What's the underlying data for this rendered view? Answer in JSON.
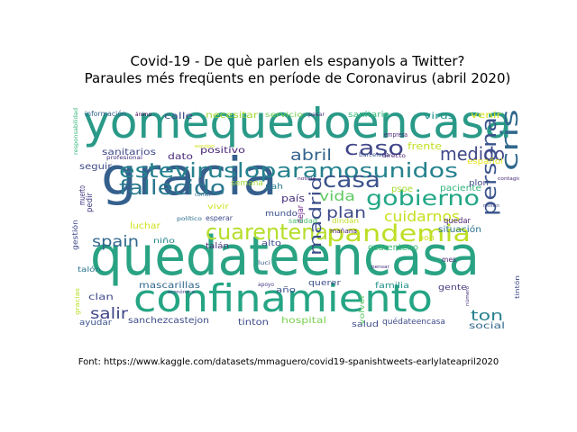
{
  "figure": {
    "title_line1": "Covid-19 - De què parlen els espanyols a Twitter?",
    "title_line2": "Paraules més freqüents en període de Coronavirus (abril 2020)",
    "source": "Font: https://www.kaggle.com/datasets/mmaguero/covid19-spanishtweets-earlylateapril2020"
  },
  "wordcloud": {
    "words": [
      {
        "text": "yomequedoencasa",
        "color": "#2a9a88"
      },
      {
        "text": "gracia",
        "color": "#35608d"
      },
      {
        "text": "quedateencasa",
        "color": "#29a383"
      },
      {
        "text": "confinamiento",
        "color": "#25a584"
      },
      {
        "text": "estevirusloparamosunidos",
        "color": "#26828e"
      },
      {
        "text": "pandemia",
        "color": "#bddf26"
      },
      {
        "text": "cuarentena",
        "color": "#b5de2b"
      },
      {
        "text": "gobierno",
        "color": "#22a785"
      },
      {
        "text": "crisis",
        "color": "#31688e"
      },
      {
        "text": "persona",
        "color": "#3a548c"
      },
      {
        "text": "fallecido",
        "color": "#2a788e"
      },
      {
        "text": "casa",
        "color": "#3b528b"
      },
      {
        "text": "caso",
        "color": "#404688"
      },
      {
        "text": "medido",
        "color": "#3f4788"
      },
      {
        "text": "abril",
        "color": "#33638d"
      },
      {
        "text": "madrid",
        "color": "#3c4f8a"
      },
      {
        "text": "vida",
        "color": "#5ec962"
      },
      {
        "text": "plan",
        "color": "#3e4a89"
      },
      {
        "text": "cuidarnos",
        "color": "#c8e020"
      },
      {
        "text": "spain",
        "color": "#31688e"
      },
      {
        "text": "salir",
        "color": "#3f4788"
      },
      {
        "text": "ton",
        "color": "#27808e"
      },
      {
        "text": "sanitarios",
        "color": "#3f4889"
      },
      {
        "text": "dato",
        "color": "#482878"
      },
      {
        "text": "positivo",
        "color": "#482475"
      },
      {
        "text": "calle",
        "color": "#3e4989"
      },
      {
        "text": "necesitar",
        "color": "#a2da37"
      },
      {
        "text": "servicio",
        "color": "#6ece58"
      },
      {
        "text": "sanitario",
        "color": "#35b779"
      },
      {
        "text": "virus",
        "color": "#21918c"
      },
      {
        "text": "venir",
        "color": "#d8e219"
      },
      {
        "text": "información",
        "color": "#33638d"
      },
      {
        "text": "ánimo",
        "color": "#440154"
      },
      {
        "text": "pasar",
        "color": "#46337e"
      },
      {
        "text": "empresa",
        "color": "#482576"
      },
      {
        "text": "frente",
        "color": "#c2df23"
      },
      {
        "text": "paciente",
        "color": "#31b57b"
      },
      {
        "text": "psoe",
        "color": "#a8db34"
      },
      {
        "text": "seguir",
        "color": "#3e4a89"
      },
      {
        "text": "semana",
        "color": "#a0da39"
      },
      {
        "text": "pah",
        "color": "#287c8e"
      },
      {
        "text": "país",
        "color": "#472f7d"
      },
      {
        "text": "luchar",
        "color": "#d0e11c"
      },
      {
        "text": "mundo",
        "color": "#3b518b"
      },
      {
        "text": "niño",
        "color": "#26828e"
      },
      {
        "text": "alto",
        "color": "#3d4d8a"
      },
      {
        "text": "talán",
        "color": "#472c7a"
      },
      {
        "text": "dejar",
        "color": "#6b1f87"
      },
      {
        "text": "cuarenteno",
        "color": "#3dbc74"
      },
      {
        "text": "situación",
        "color": "#2c718e"
      },
      {
        "text": "quedar",
        "color": "#481f70"
      },
      {
        "text": "pon",
        "color": "#cbe11e"
      },
      {
        "text": "español",
        "color": "#e7e419"
      },
      {
        "text": "plon",
        "color": "#3e4989"
      },
      {
        "text": "muerto",
        "color": "#443983"
      },
      {
        "text": "pedir",
        "color": "#433e85"
      },
      {
        "text": "gestión",
        "color": "#3f4788"
      },
      {
        "text": "mascarillas",
        "color": "#31688e"
      },
      {
        "text": "clan",
        "color": "#3e4989"
      },
      {
        "text": "talón",
        "color": "#2a768e"
      },
      {
        "text": "ayudar",
        "color": "#3b528b"
      },
      {
        "text": "sanchezcastejon",
        "color": "#3e4c8a"
      },
      {
        "text": "tinton",
        "color": "#3e4a89"
      },
      {
        "text": "hospital",
        "color": "#79d151"
      },
      {
        "text": "querer",
        "color": "#3c4f8a"
      },
      {
        "text": "familia",
        "color": "#21918c"
      },
      {
        "text": "gente",
        "color": "#453882"
      },
      {
        "text": "salud",
        "color": "#3d4e8a"
      },
      {
        "text": "quédateencasa",
        "color": "#3e4a89"
      },
      {
        "text": "social",
        "color": "#31688e"
      },
      {
        "text": "año",
        "color": "#3b518b"
      },
      {
        "text": "volver",
        "color": "#5ec962"
      },
      {
        "text": "gracias",
        "color": "#b8de29"
      },
      {
        "text": "tintón",
        "color": "#3e4a89"
      },
      {
        "text": "responsabilidad",
        "color": "#35b779"
      },
      {
        "text": "vivir",
        "color": "#cde11d"
      },
      {
        "text": "sanidad",
        "color": "#4ac16d"
      },
      {
        "text": "dindán",
        "color": "#c0df25"
      },
      {
        "text": "mañana",
        "color": "#482071"
      },
      {
        "text": "esperar",
        "color": "#3e4a89"
      },
      {
        "text": "político",
        "color": "#2e6f8e"
      },
      {
        "text": "comer",
        "color": "#31688e"
      },
      {
        "text": "profesional",
        "color": "#46307e"
      },
      {
        "text": "directo",
        "color": "#481c6e"
      },
      {
        "text": "barcelona",
        "color": "#3b528b"
      },
      {
        "text": "noticia",
        "color": "#482071"
      },
      {
        "text": "millón",
        "color": "#3f4788"
      },
      {
        "text": "contagio",
        "color": "#482878"
      },
      {
        "text": "mes",
        "color": "#482475"
      },
      {
        "text": "pensar",
        "color": "#472e7c"
      },
      {
        "text": "apoyo",
        "color": "#433d84"
      },
      {
        "text": "número",
        "color": "#46327e"
      },
      {
        "text": "económico",
        "color": "#404588"
      },
      {
        "text": "luci",
        "color": "#3a548c"
      },
      {
        "text": "equipo",
        "color": "#d2e21b"
      }
    ]
  }
}
